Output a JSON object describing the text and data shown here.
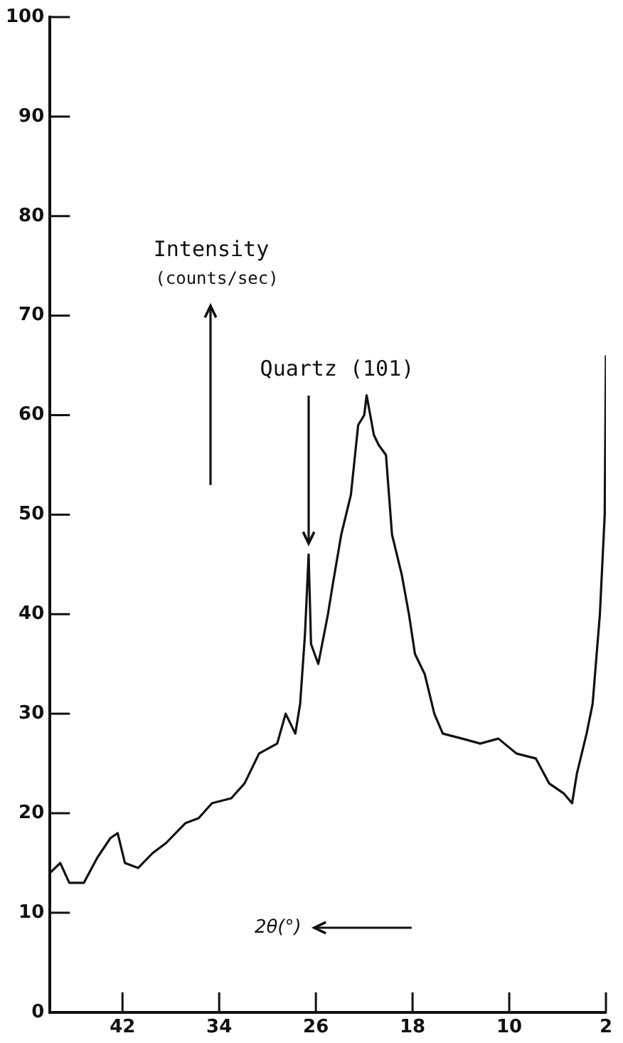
{
  "chart_data": {
    "type": "line",
    "xlabel": "2θ(°)",
    "ylabel": "Intensity (counts/sec)",
    "annotations": [
      {
        "text": "Quartz (101)",
        "x": 26.6,
        "y": 46
      }
    ],
    "xlim": [
      48,
      2
    ],
    "xticks": [
      42,
      34,
      26,
      18,
      10,
      2
    ],
    "ylim": [
      0,
      100
    ],
    "yticks": [
      0,
      10,
      20,
      30,
      40,
      50,
      60,
      70,
      80,
      90,
      100
    ],
    "grid": false,
    "legend": false,
    "marker": "none",
    "line_style": "solid",
    "series": [
      {
        "color": "#111111",
        "x": [
          48.0,
          47.15,
          46.4,
          45.2,
          44.1,
          43.0,
          42.4,
          41.8,
          40.7,
          39.5,
          38.4,
          36.8,
          35.7,
          34.6,
          33.0,
          31.9,
          30.7,
          29.2,
          28.5,
          27.7,
          27.3,
          26.9,
          26.6,
          26.4,
          25.8,
          25.0,
          24.6,
          23.9,
          23.1,
          22.5,
          22.0,
          21.8,
          21.2,
          20.8,
          20.2,
          19.7,
          18.9,
          18.3,
          17.8,
          17.0,
          16.2,
          15.5,
          13.9,
          12.4,
          10.9,
          9.4,
          7.8,
          6.7,
          5.5,
          4.8,
          4.4,
          3.6,
          3.1,
          2.5,
          2.1,
          2.0
        ],
        "values": [
          14,
          15,
          13,
          13,
          15.5,
          17.5,
          18,
          15,
          14.5,
          16,
          17,
          19,
          19.5,
          21,
          21.5,
          23,
          26,
          27,
          30,
          28,
          31,
          38,
          46,
          37,
          35,
          40,
          43,
          48,
          52,
          59,
          60,
          62,
          58,
          57,
          56,
          48,
          44,
          40,
          36,
          34,
          30,
          28,
          27.5,
          27,
          27.5,
          26,
          25.5,
          23,
          22,
          21,
          24,
          28,
          31,
          40,
          50,
          66
        ]
      }
    ]
  }
}
